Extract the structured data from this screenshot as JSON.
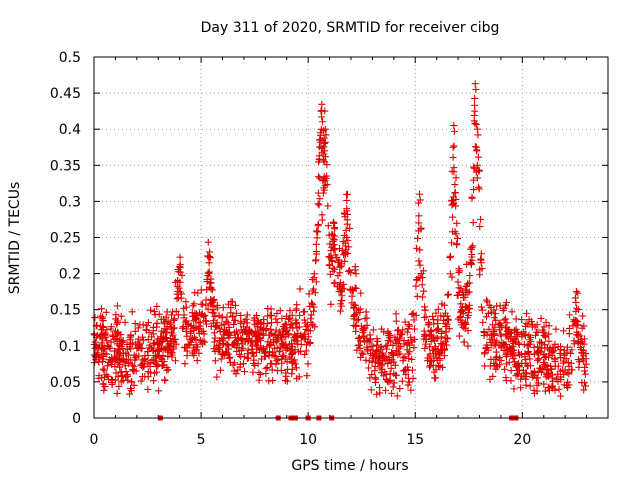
{
  "chart_data": {
    "type": "scatter",
    "title": "Day 311 of 2020, SRMTID for receiver cibg",
    "xlabel": "GPS time / hours",
    "ylabel": "SRMTID / TECUs",
    "xlim": [
      0,
      24
    ],
    "ylim": [
      0,
      0.5
    ],
    "x_ticks": [
      0,
      5,
      10,
      15,
      20
    ],
    "x_tick_labels": [
      "0",
      "5",
      "10",
      "15",
      "20"
    ],
    "y_ticks": [
      0,
      0.05,
      0.1,
      0.15,
      0.2,
      0.25,
      0.3,
      0.35,
      0.4,
      0.45,
      0.5
    ],
    "y_tick_labels": [
      "0",
      "0.05",
      "0.1",
      "0.15",
      "0.2",
      "0.25",
      "0.3",
      "0.35",
      "0.4",
      "0.45",
      "0.5"
    ],
    "grid": true,
    "marker": "plus",
    "color": "#e00000",
    "data_span_hours": [
      0,
      23
    ],
    "points_per_hour": 85,
    "baseline_profile": {
      "hours": [
        0,
        1,
        2,
        2.5,
        3.5,
        4,
        4.5,
        5,
        6,
        7,
        8,
        8.5,
        9,
        9.5,
        10,
        10.5,
        11,
        11.5,
        12,
        12.5,
        13,
        14,
        15,
        16,
        16.5,
        17,
        17.5,
        18,
        18.5,
        19,
        20,
        21,
        22,
        22.5,
        23
      ],
      "srmtid": [
        0.1,
        0.09,
        0.085,
        0.09,
        0.1,
        0.12,
        0.11,
        0.13,
        0.11,
        0.11,
        0.1,
        0.11,
        0.1,
        0.11,
        0.12,
        0.2,
        0.17,
        0.18,
        0.17,
        0.11,
        0.09,
        0.085,
        0.1,
        0.1,
        0.12,
        0.14,
        0.15,
        0.13,
        0.11,
        0.1,
        0.09,
        0.08,
        0.075,
        0.1,
        0.07
      ]
    },
    "peaks": [
      {
        "hour": 10.6,
        "srmtid": 0.425
      },
      {
        "hour": 10.8,
        "srmtid": 0.4
      },
      {
        "hour": 11.2,
        "srmtid": 0.27
      },
      {
        "hour": 11.8,
        "srmtid": 0.29
      },
      {
        "hour": 15.2,
        "srmtid": 0.31
      },
      {
        "hour": 16.8,
        "srmtid": 0.405
      },
      {
        "hour": 17.8,
        "srmtid": 0.463
      },
      {
        "hour": 17.9,
        "srmtid": 0.4
      },
      {
        "hour": 5.4,
        "srmtid": 0.23
      },
      {
        "hour": 4.0,
        "srmtid": 0.21
      },
      {
        "hour": 22.5,
        "srmtid": 0.16
      }
    ],
    "zero_flag_hours": [
      3.1,
      8.6,
      9.2,
      9.4,
      10.0,
      10.5,
      11.1,
      19.5,
      19.7
    ]
  }
}
